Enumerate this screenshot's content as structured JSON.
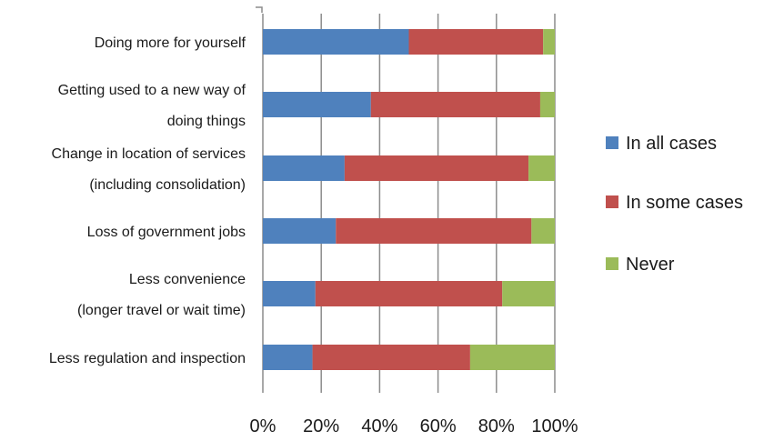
{
  "chart_data": {
    "type": "bar",
    "orientation": "horizontal",
    "stacked": "percent",
    "categories": [
      [
        "Doing more for yourself"
      ],
      [
        "Getting used to a new way of",
        "doing things"
      ],
      [
        "Change in location of services",
        "(including consolidation)"
      ],
      [
        "Loss of government jobs"
      ],
      [
        "Less convenience",
        "(longer travel or wait time)"
      ],
      [
        "Less regulation and inspection"
      ]
    ],
    "series": [
      {
        "name": "In all cases",
        "color": "#4f81bd",
        "values": [
          50,
          37,
          28,
          25,
          18,
          17
        ]
      },
      {
        "name": "In some cases",
        "color": "#c0504d",
        "values": [
          46,
          58,
          63,
          67,
          64,
          54
        ]
      },
      {
        "name": "Never",
        "color": "#9bbb59",
        "values": [
          4,
          5,
          9,
          8,
          18,
          29
        ]
      }
    ],
    "xlim": [
      0,
      100
    ],
    "xticks": [
      "0%",
      "20%",
      "40%",
      "60%",
      "80%",
      "100%"
    ],
    "grid": true,
    "legend": "right"
  }
}
